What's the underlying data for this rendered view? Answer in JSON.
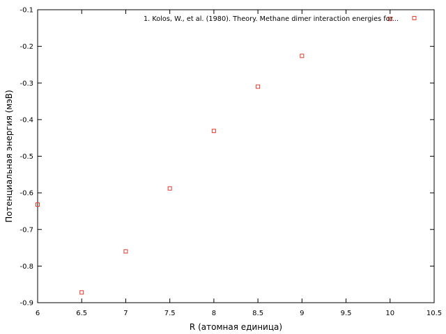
{
  "chart_data": {
    "type": "scatter",
    "title": "",
    "xlabel": "R (атомная единица)",
    "ylabel": "Потенциальная энергия (мэВ)",
    "xlim": [
      6,
      10.5
    ],
    "ylim": [
      -0.9,
      -0.1
    ],
    "x_ticks": [
      "6",
      "6.5",
      "7",
      "7.5",
      "8",
      "8.5",
      "9",
      "9.5",
      "10",
      "10.5"
    ],
    "y_ticks": [
      "-0.1",
      "-0.2",
      "-0.3",
      "-0.4",
      "-0.5",
      "-0.6",
      "-0.7",
      "-0.8",
      "-0.9"
    ],
    "grid": false,
    "legend_position": "top-right",
    "series": [
      {
        "name": "1. Kolos, W., et al. (1980). Theory. Methane dimer interaction energies for...",
        "color": "#e8392b",
        "marker": "open-square",
        "x": [
          6.0,
          6.5,
          7.0,
          7.5,
          8.0,
          8.5,
          9.0,
          10.0
        ],
        "y": [
          -0.632,
          -0.872,
          -0.76,
          -0.588,
          -0.431,
          -0.31,
          -0.226,
          -0.125
        ]
      }
    ]
  }
}
